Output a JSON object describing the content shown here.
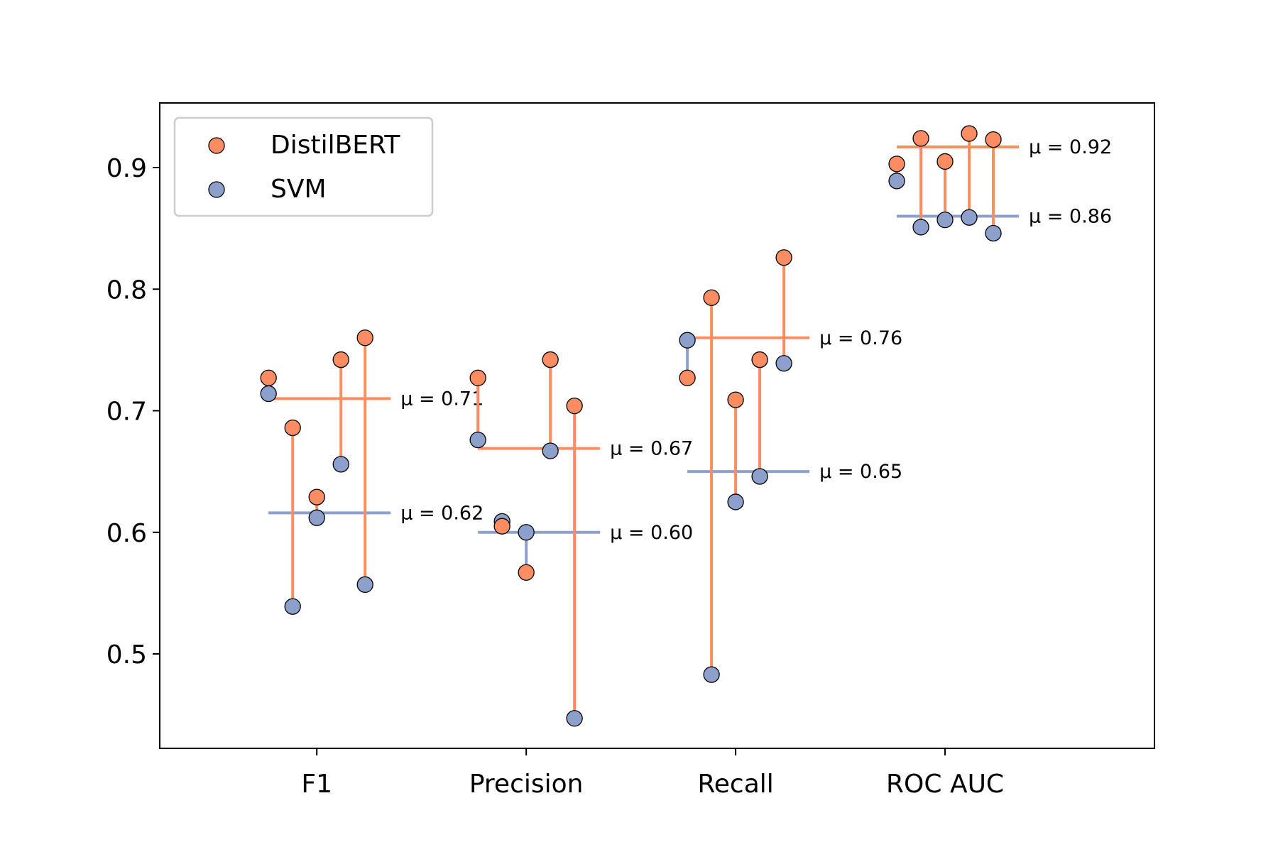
{
  "chart_data": {
    "type": "scatter",
    "categories": [
      "F1",
      "Precision",
      "Recall",
      "ROC AUC"
    ],
    "ylim": [
      0.43,
      0.95
    ],
    "yticks": [
      0.5,
      0.6,
      0.7,
      0.8,
      0.9
    ],
    "ytick_labels": [
      "0.5",
      "0.6",
      "0.7",
      "0.8",
      "0.9"
    ],
    "grid": false,
    "legend_position": "top-left",
    "series": [
      {
        "name": "DistilBERT",
        "color": "#fc8d62",
        "values": [
          [
            0.727,
            0.686,
            0.629,
            0.742,
            0.76
          ],
          [
            0.727,
            0.605,
            0.567,
            0.742,
            0.704
          ],
          [
            0.727,
            0.793,
            0.709,
            0.742,
            0.826
          ],
          [
            0.903,
            0.924,
            0.905,
            0.928,
            0.923
          ]
        ]
      },
      {
        "name": "SVM",
        "color": "#8da0cb",
        "values": [
          [
            0.714,
            0.539,
            0.612,
            0.656,
            0.557
          ],
          [
            0.676,
            0.609,
            0.6,
            0.667,
            0.447
          ],
          [
            0.758,
            0.483,
            0.625,
            0.646,
            0.739
          ],
          [
            0.889,
            0.851,
            0.857,
            0.859,
            0.846
          ]
        ]
      }
    ],
    "means": [
      {
        "distilbert": 0.71,
        "svm": 0.616,
        "distilbert_label": "μ = 0.71",
        "svm_label": "μ = 0.62"
      },
      {
        "distilbert": 0.669,
        "svm": 0.6,
        "distilbert_label": "μ = 0.67",
        "svm_label": "μ = 0.60"
      },
      {
        "distilbert": 0.76,
        "svm": 0.65,
        "distilbert_label": "μ = 0.76",
        "svm_label": "μ = 0.65"
      },
      {
        "distilbert": 0.917,
        "svm": 0.86,
        "distilbert_label": "μ = 0.92",
        "svm_label": "μ = 0.86"
      }
    ]
  }
}
